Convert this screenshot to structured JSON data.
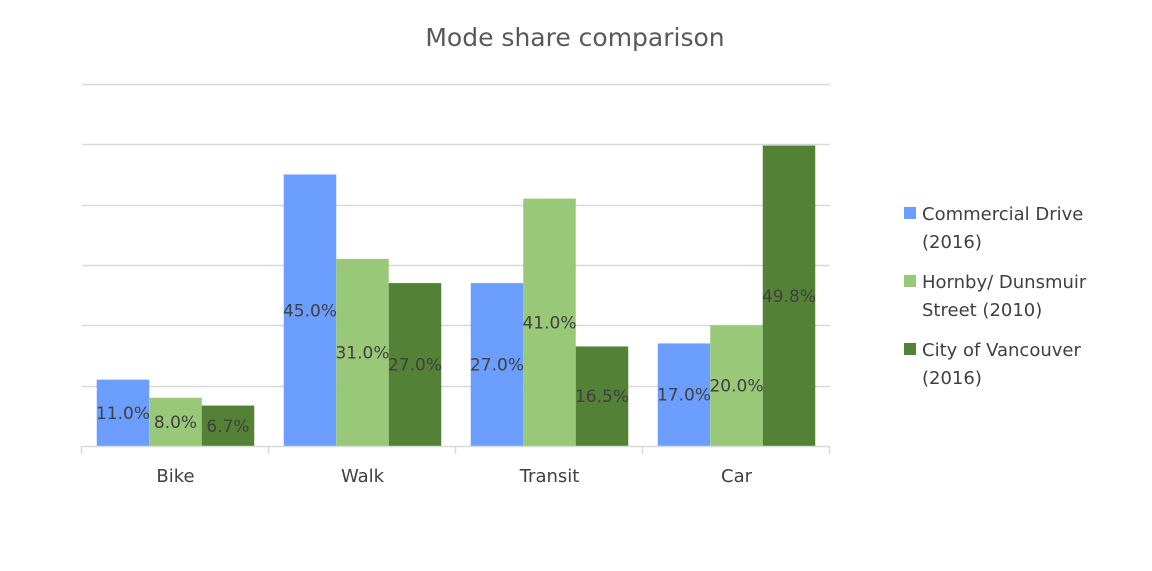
{
  "chart_data": {
    "type": "bar",
    "title": "Mode share comparison",
    "xlabel": "",
    "ylabel": "",
    "ylim": [
      0,
      60
    ],
    "grid": true,
    "legend_position": "right",
    "categories": [
      "Bike",
      "Walk",
      "Transit",
      "Car"
    ],
    "series": [
      {
        "name": "Commercial Drive (2016)",
        "name_lines": [
          "Commercial Drive",
          "(2016)"
        ],
        "color": "#6b9eff",
        "values": [
          11.0,
          45.0,
          27.0,
          17.0
        ],
        "labels": [
          "11.0%",
          "45.0%",
          "27.0%",
          "17.0%"
        ]
      },
      {
        "name": "Hornby/ Dunsmuir Street (2010)",
        "name_lines": [
          "Hornby/ Dunsmuir",
          "Street (2010)"
        ],
        "color": "#98c878",
        "values": [
          8.0,
          31.0,
          41.0,
          20.0
        ],
        "labels": [
          "8.0%",
          "31.0%",
          "41.0%",
          "20.0%"
        ]
      },
      {
        "name": "City of Vancouver (2016)",
        "name_lines": [
          "City of Vancouver",
          "(2016)"
        ],
        "color": "#538135",
        "values": [
          6.7,
          27.0,
          16.5,
          49.8
        ],
        "labels": [
          "6.7%",
          "27.0%",
          "16.5%",
          "49.8%"
        ]
      }
    ]
  }
}
